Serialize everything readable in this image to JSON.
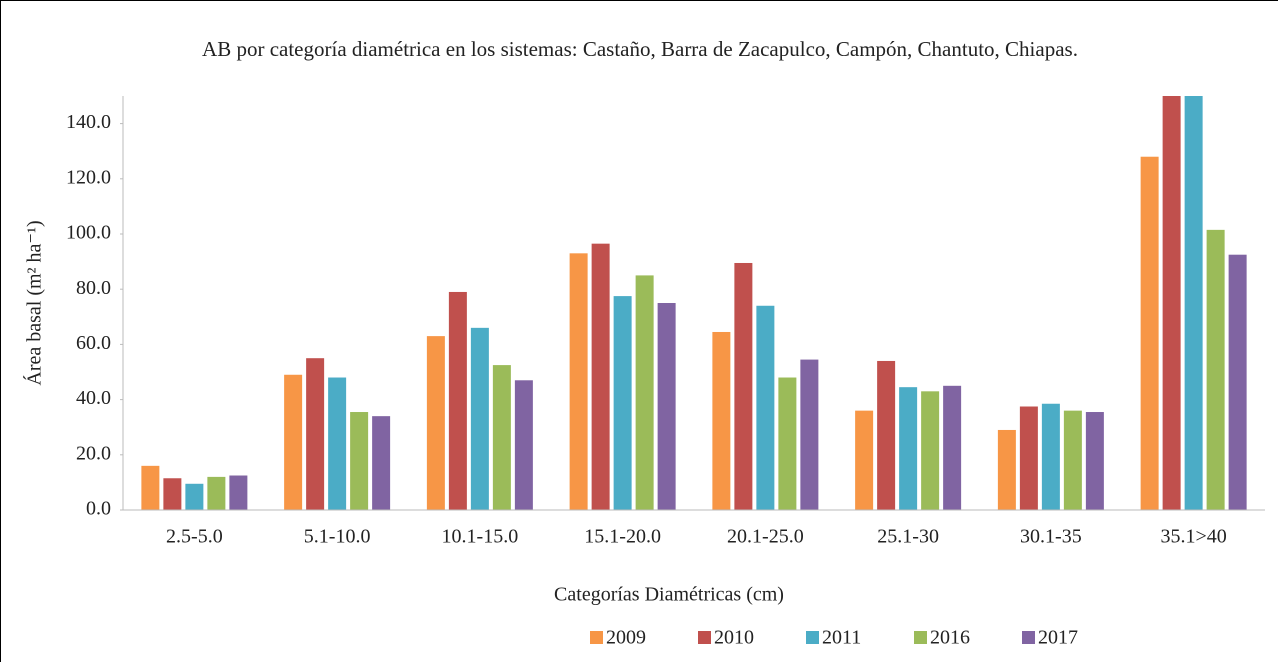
{
  "chart_data": {
    "type": "bar",
    "title": "AB por categoría diamétrica en los sistemas: Castaño, Barra de Zacapulco, Campón, Chantuto, Chiapas.",
    "x_label": "Categorías Diamétricas (cm)",
    "y_label": "Área basal (m² ha⁻¹)",
    "categories": [
      "2.5-5.0",
      "5.1-10.0",
      "10.1-15.0",
      "15.1-20.0",
      "20.1-25.0",
      "25.1-30",
      "30.1-35",
      "35.1>40"
    ],
    "series": [
      {
        "name": "2009",
        "color": "#f79646",
        "values": [
          16,
          49,
          63,
          93,
          64.5,
          36,
          29,
          128
        ]
      },
      {
        "name": "2010",
        "color": "#c0504d",
        "values": [
          11.5,
          55,
          79,
          96.5,
          89.5,
          54,
          37.5,
          150
        ]
      },
      {
        "name": "2011",
        "color": "#4bacc6",
        "values": [
          9.5,
          48,
          66,
          77.5,
          74,
          44.5,
          38.5,
          150
        ]
      },
      {
        "name": "2016",
        "color": "#9bbb59",
        "values": [
          12,
          35.5,
          52.5,
          85,
          48,
          43,
          36,
          101.5
        ]
      },
      {
        "name": "2017",
        "color": "#8064a2",
        "values": [
          12.5,
          34,
          47,
          75,
          54.5,
          45,
          35.5,
          92.5
        ]
      }
    ],
    "ylim": [
      0,
      150
    ],
    "yticks": [
      {
        "value": 0,
        "label": "0.0"
      },
      {
        "value": 20,
        "label": "20.0"
      },
      {
        "value": 40,
        "label": "40.0"
      },
      {
        "value": 60,
        "label": "60.0"
      },
      {
        "value": 80,
        "label": "80.0"
      },
      {
        "value": 100,
        "label": "100.0"
      },
      {
        "value": 120,
        "label": "120.0"
      },
      {
        "value": 140,
        "label": "140.0"
      }
    ],
    "legend": "bottom"
  }
}
